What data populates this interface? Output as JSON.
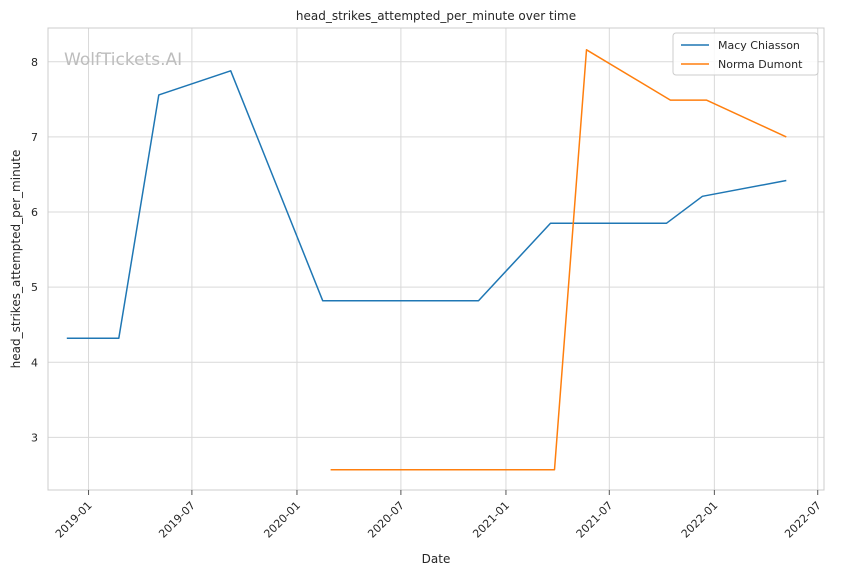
{
  "chart_data": {
    "type": "line",
    "title": "head_strikes_attempted_per_minute over time",
    "xlabel": "Date",
    "ylabel": "head_strikes_attempted_per_minute",
    "watermark": "WolfTickets.AI",
    "x_ticks": [
      "2019-01",
      "2019-07",
      "2020-01",
      "2020-07",
      "2021-01",
      "2021-07",
      "2022-01",
      "2022-07"
    ],
    "y_ticks": [
      3,
      4,
      5,
      6,
      7,
      8
    ],
    "xlim": [
      "2018-10-22",
      "2022-07-12"
    ],
    "ylim": [
      2.3,
      8.45
    ],
    "grid": true,
    "legend_position": "top-right",
    "series": [
      {
        "name": "Macy Chiasson",
        "color": "#1f77b4",
        "x": [
          "2018-11-24",
          "2019-02-23",
          "2019-05-04",
          "2019-09-07",
          "2020-02-15",
          "2020-11-14",
          "2021-03-20",
          "2021-10-09",
          "2021-12-11",
          "2022-05-07"
        ],
        "y": [
          4.32,
          4.32,
          7.56,
          7.88,
          4.82,
          4.82,
          5.85,
          5.85,
          6.21,
          6.42
        ]
      },
      {
        "name": "Norma Dumont",
        "color": "#ff7f0e",
        "x": [
          "2020-02-29",
          "2021-03-27",
          "2021-05-22",
          "2021-10-16",
          "2021-12-18",
          "2022-05-07"
        ],
        "y": [
          2.57,
          2.57,
          8.16,
          7.49,
          7.49,
          7.0
        ]
      }
    ]
  }
}
